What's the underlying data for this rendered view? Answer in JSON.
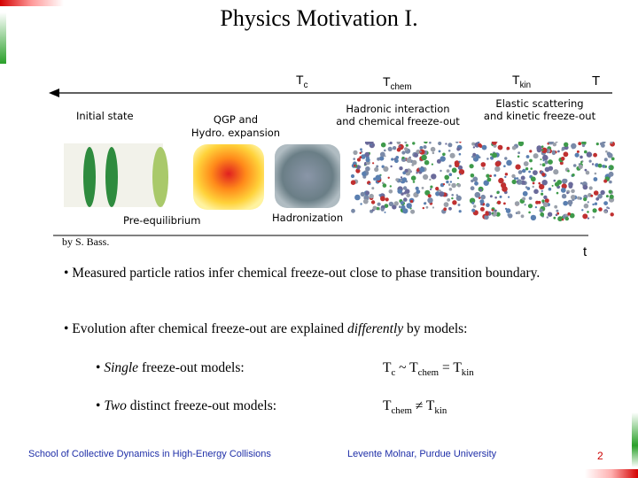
{
  "title": "Physics Motivation I.",
  "timeline": {
    "tc_label": "T",
    "tc_sub": "c",
    "tchem_label": "T",
    "tchem_sub": "chem",
    "tkin_label": "T",
    "tkin_sub": "kin",
    "t_label": "T",
    "time_label": "t"
  },
  "stages": {
    "initial_state": "Initial state",
    "qgp_line1": "QGP and",
    "qgp_line2": "Hydro. expansion",
    "hadronic_line1": "Hadronic interaction",
    "hadronic_line2": "and chemical freeze-out",
    "elastic_line1": "Elastic scattering",
    "elastic_line2": "and kinetic freeze-out",
    "pre_equilibrium": "Pre-equilibrium",
    "hadronization": "Hadronization"
  },
  "credit": "by S. Bass.",
  "bullets": {
    "b1": "• Measured particle ratios infer chemical freeze-out close to phase transition boundary.",
    "b2_pre": "• Evolution after chemical freeze-out are explained ",
    "b2_em": "differently",
    "b2_post": " by models:",
    "single_bullet": "• ",
    "single_em": "Single",
    "single_rest": " freeze-out models:",
    "single_rel_t1": "T",
    "single_rel_s1": "c",
    "single_rel_op1": " ~ T",
    "single_rel_s2": "chem",
    "single_rel_op2": " = T",
    "single_rel_s3": "kin",
    "two_bullet": "• ",
    "two_em": "Two",
    "two_rest": " distinct freeze-out models:",
    "two_rel_t1": "T",
    "two_rel_s1": "chem",
    "two_rel_op": " ≠ T",
    "two_rel_s2": "kin"
  },
  "footer": {
    "school": "School of Collective Dynamics in High-Energy Collisions",
    "author": "Levente Molnar, Purdue University",
    "page": "2"
  },
  "colors": {
    "footer_blue": "#1f2fa8",
    "page_red": "#cc0000",
    "accent_red": "#d40000",
    "accent_green": "#2aa02a"
  }
}
